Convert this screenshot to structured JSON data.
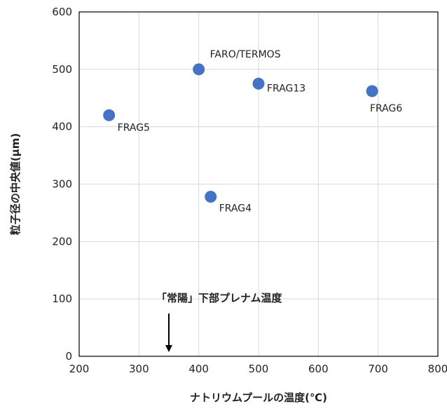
{
  "chart_data": {
    "type": "scatter",
    "xlabel": "ナトリウムプールの温度(℃)",
    "ylabel": "粒子径の中央値(μm)",
    "xlim": [
      200,
      800
    ],
    "ylim": [
      0,
      600
    ],
    "x_ticks": [
      200,
      300,
      400,
      500,
      600,
      700,
      800
    ],
    "y_ticks": [
      0,
      100,
      200,
      300,
      400,
      500,
      600
    ],
    "grid": true,
    "marker_color": "#4472C4",
    "points": [
      {
        "label": "FRAG5",
        "x": 250,
        "y": 420
      },
      {
        "label": "FARO/TERMOS",
        "x": 400,
        "y": 500
      },
      {
        "label": "FRAG4",
        "x": 420,
        "y": 278
      },
      {
        "label": "FRAG13",
        "x": 500,
        "y": 475
      },
      {
        "label": "FRAG6",
        "x": 690,
        "y": 462
      }
    ],
    "annotation": {
      "text": "「常陽」下部プレナム温度",
      "x": 350
    }
  }
}
